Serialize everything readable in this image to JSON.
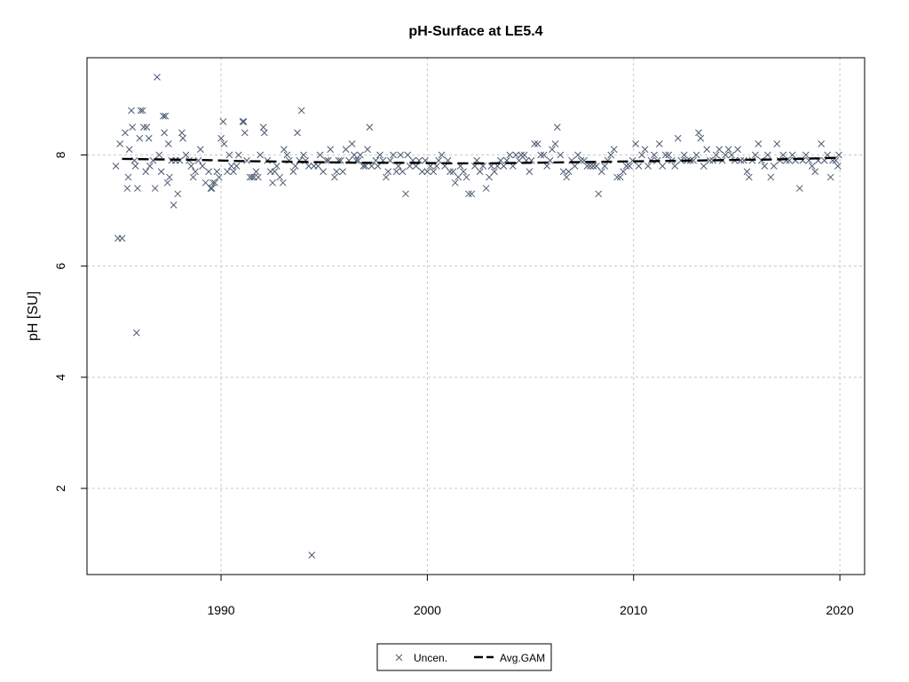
{
  "chart_data": {
    "type": "scatter",
    "title": "pH-Surface at LE5.4",
    "xlabel": "",
    "ylabel": "pH [SU]",
    "xlim": [
      1983.5,
      2021.2
    ],
    "ylim": [
      0.45,
      9.75
    ],
    "x_ticks": [
      1990,
      2000,
      2010,
      2020
    ],
    "y_ticks": [
      2,
      4,
      6,
      8
    ],
    "grid": true,
    "legend_position": "bottom-center",
    "colors": {
      "points": "#4a5a70",
      "line": "#000000",
      "grid": "#c8c8c8"
    },
    "series": [
      {
        "name": "Uncen.",
        "marker": "x",
        "points": [
          [
            1984.9,
            7.8
          ],
          [
            1985.0,
            6.5
          ],
          [
            1985.1,
            8.2
          ],
          [
            1985.2,
            6.5
          ],
          [
            1985.35,
            8.4
          ],
          [
            1985.45,
            7.4
          ],
          [
            1985.5,
            7.6
          ],
          [
            1985.55,
            8.1
          ],
          [
            1985.65,
            8.8
          ],
          [
            1985.7,
            8.5
          ],
          [
            1985.8,
            7.9
          ],
          [
            1985.85,
            7.8
          ],
          [
            1985.9,
            4.8
          ],
          [
            1985.95,
            7.4
          ],
          [
            1986.05,
            8.3
          ],
          [
            1986.1,
            8.8
          ],
          [
            1986.2,
            8.8
          ],
          [
            1986.25,
            8.5
          ],
          [
            1986.35,
            7.7
          ],
          [
            1986.4,
            8.5
          ],
          [
            1986.5,
            8.3
          ],
          [
            1986.55,
            7.8
          ],
          [
            1986.7,
            7.9
          ],
          [
            1986.8,
            7.4
          ],
          [
            1986.9,
            9.4
          ],
          [
            1987.0,
            8.0
          ],
          [
            1987.1,
            7.7
          ],
          [
            1987.2,
            8.7
          ],
          [
            1987.25,
            8.4
          ],
          [
            1987.3,
            8.7
          ],
          [
            1987.4,
            7.5
          ],
          [
            1987.45,
            8.2
          ],
          [
            1987.5,
            7.6
          ],
          [
            1987.6,
            7.9
          ],
          [
            1987.7,
            7.1
          ],
          [
            1987.8,
            7.9
          ],
          [
            1987.9,
            7.3
          ],
          [
            1988.0,
            7.9
          ],
          [
            1988.1,
            8.4
          ],
          [
            1988.15,
            8.3
          ],
          [
            1988.3,
            8.0
          ],
          [
            1988.45,
            7.9
          ],
          [
            1988.55,
            7.8
          ],
          [
            1988.65,
            7.6
          ],
          [
            1988.75,
            7.7
          ],
          [
            1988.9,
            7.9
          ],
          [
            1989.0,
            8.1
          ],
          [
            1989.1,
            7.8
          ],
          [
            1989.25,
            7.5
          ],
          [
            1989.4,
            7.7
          ],
          [
            1989.5,
            7.4
          ],
          [
            1989.55,
            7.4
          ],
          [
            1989.6,
            7.5
          ],
          [
            1989.7,
            7.5
          ],
          [
            1989.8,
            7.7
          ],
          [
            1989.9,
            7.6
          ],
          [
            1990.0,
            8.3
          ],
          [
            1990.1,
            8.6
          ],
          [
            1990.15,
            8.2
          ],
          [
            1990.3,
            7.7
          ],
          [
            1990.4,
            8.0
          ],
          [
            1990.5,
            7.8
          ],
          [
            1990.6,
            7.7
          ],
          [
            1990.75,
            7.8
          ],
          [
            1990.85,
            8.0
          ],
          [
            1991.05,
            8.6
          ],
          [
            1991.1,
            8.6
          ],
          [
            1991.15,
            8.4
          ],
          [
            1991.25,
            7.9
          ],
          [
            1991.4,
            7.6
          ],
          [
            1991.5,
            7.6
          ],
          [
            1991.6,
            7.6
          ],
          [
            1991.7,
            7.7
          ],
          [
            1991.8,
            7.6
          ],
          [
            1991.9,
            8.0
          ],
          [
            1992.05,
            8.5
          ],
          [
            1992.1,
            8.4
          ],
          [
            1992.25,
            7.9
          ],
          [
            1992.4,
            7.7
          ],
          [
            1992.5,
            7.5
          ],
          [
            1992.6,
            7.7
          ],
          [
            1992.7,
            7.8
          ],
          [
            1992.85,
            7.6
          ],
          [
            1993.0,
            7.5
          ],
          [
            1993.05,
            8.1
          ],
          [
            1993.2,
            8.0
          ],
          [
            1993.3,
            7.9
          ],
          [
            1993.5,
            7.7
          ],
          [
            1993.6,
            7.8
          ],
          [
            1993.7,
            8.4
          ],
          [
            1993.8,
            7.9
          ],
          [
            1993.9,
            8.8
          ],
          [
            1994.0,
            8.0
          ],
          [
            1994.1,
            7.9
          ],
          [
            1994.25,
            7.8
          ],
          [
            1994.4,
            0.8
          ],
          [
            1994.5,
            7.8
          ],
          [
            1994.7,
            7.8
          ],
          [
            1994.8,
            8.0
          ],
          [
            1994.95,
            7.7
          ],
          [
            1995.1,
            7.9
          ],
          [
            1995.2,
            7.9
          ],
          [
            1995.3,
            8.1
          ],
          [
            1995.5,
            7.6
          ],
          [
            1995.6,
            7.7
          ],
          [
            1995.7,
            7.9
          ],
          [
            1995.8,
            7.9
          ],
          [
            1995.9,
            7.7
          ],
          [
            1996.05,
            8.1
          ],
          [
            1996.2,
            7.9
          ],
          [
            1996.35,
            8.2
          ],
          [
            1996.45,
            8.0
          ],
          [
            1996.55,
            7.9
          ],
          [
            1996.65,
            7.9
          ],
          [
            1996.75,
            8.0
          ],
          [
            1996.9,
            7.8
          ],
          [
            1997.0,
            7.8
          ],
          [
            1997.1,
            8.1
          ],
          [
            1997.2,
            8.5
          ],
          [
            1997.3,
            7.8
          ],
          [
            1997.5,
            7.9
          ],
          [
            1997.6,
            7.8
          ],
          [
            1997.7,
            8.0
          ],
          [
            1997.85,
            7.9
          ],
          [
            1998.0,
            7.6
          ],
          [
            1998.1,
            7.7
          ],
          [
            1998.2,
            7.9
          ],
          [
            1998.35,
            8.0
          ],
          [
            1998.5,
            7.7
          ],
          [
            1998.6,
            7.8
          ],
          [
            1998.7,
            8.0
          ],
          [
            1998.8,
            7.7
          ],
          [
            1998.95,
            7.3
          ],
          [
            1999.05,
            8.0
          ],
          [
            1999.15,
            7.8
          ],
          [
            1999.3,
            7.9
          ],
          [
            1999.45,
            7.8
          ],
          [
            1999.6,
            7.9
          ],
          [
            1999.75,
            7.7
          ],
          [
            1999.9,
            7.9
          ],
          [
            2000.0,
            7.7
          ],
          [
            2000.15,
            7.8
          ],
          [
            2000.3,
            7.7
          ],
          [
            2000.45,
            7.8
          ],
          [
            2000.55,
            7.9
          ],
          [
            2000.7,
            8.0
          ],
          [
            2000.85,
            7.8
          ],
          [
            2001.0,
            7.9
          ],
          [
            2001.1,
            7.7
          ],
          [
            2001.25,
            7.7
          ],
          [
            2001.35,
            7.5
          ],
          [
            2001.5,
            7.6
          ],
          [
            2001.6,
            7.8
          ],
          [
            2001.75,
            7.7
          ],
          [
            2001.9,
            7.6
          ],
          [
            2002.0,
            7.3
          ],
          [
            2002.15,
            7.3
          ],
          [
            2002.3,
            7.8
          ],
          [
            2002.4,
            7.9
          ],
          [
            2002.55,
            7.7
          ],
          [
            2002.7,
            7.8
          ],
          [
            2002.85,
            7.4
          ],
          [
            2003.0,
            7.6
          ],
          [
            2003.1,
            7.8
          ],
          [
            2003.25,
            7.7
          ],
          [
            2003.4,
            7.8
          ],
          [
            2003.55,
            7.9
          ],
          [
            2003.7,
            7.8
          ],
          [
            2003.85,
            7.9
          ],
          [
            2004.0,
            8.0
          ],
          [
            2004.15,
            7.8
          ],
          [
            2004.3,
            8.0
          ],
          [
            2004.45,
            7.9
          ],
          [
            2004.55,
            8.0
          ],
          [
            2004.7,
            8.0
          ],
          [
            2004.8,
            7.9
          ],
          [
            2004.95,
            7.7
          ],
          [
            2005.05,
            7.9
          ],
          [
            2005.2,
            8.2
          ],
          [
            2005.35,
            8.2
          ],
          [
            2005.5,
            8.0
          ],
          [
            2005.65,
            8.0
          ],
          [
            2005.8,
            7.8
          ],
          [
            2005.95,
            7.9
          ],
          [
            2006.05,
            8.1
          ],
          [
            2006.2,
            8.2
          ],
          [
            2006.3,
            8.5
          ],
          [
            2006.45,
            8.0
          ],
          [
            2006.6,
            7.7
          ],
          [
            2006.75,
            7.6
          ],
          [
            2006.85,
            7.7
          ],
          [
            2007.0,
            7.9
          ],
          [
            2007.15,
            7.8
          ],
          [
            2007.3,
            8.0
          ],
          [
            2007.45,
            7.9
          ],
          [
            2007.6,
            7.9
          ],
          [
            2007.75,
            7.8
          ],
          [
            2007.9,
            7.8
          ],
          [
            2008.05,
            7.8
          ],
          [
            2008.2,
            7.8
          ],
          [
            2008.3,
            7.3
          ],
          [
            2008.45,
            7.7
          ],
          [
            2008.6,
            7.8
          ],
          [
            2008.75,
            7.9
          ],
          [
            2008.9,
            8.0
          ],
          [
            2009.05,
            8.1
          ],
          [
            2009.2,
            7.6
          ],
          [
            2009.35,
            7.6
          ],
          [
            2009.5,
            7.7
          ],
          [
            2009.65,
            7.8
          ],
          [
            2009.8,
            7.8
          ],
          [
            2009.95,
            7.9
          ],
          [
            2010.1,
            8.2
          ],
          [
            2010.25,
            7.8
          ],
          [
            2010.4,
            8.0
          ],
          [
            2010.55,
            8.1
          ],
          [
            2010.7,
            7.8
          ],
          [
            2010.85,
            7.9
          ],
          [
            2011.0,
            8.0
          ],
          [
            2011.15,
            7.9
          ],
          [
            2011.25,
            8.2
          ],
          [
            2011.4,
            7.8
          ],
          [
            2011.55,
            8.0
          ],
          [
            2011.7,
            8.0
          ],
          [
            2011.85,
            7.9
          ],
          [
            2012.0,
            7.8
          ],
          [
            2012.15,
            8.3
          ],
          [
            2012.3,
            7.9
          ],
          [
            2012.45,
            8.0
          ],
          [
            2012.6,
            7.9
          ],
          [
            2012.75,
            7.9
          ],
          [
            2012.9,
            7.9
          ],
          [
            2013.05,
            8.0
          ],
          [
            2013.15,
            8.4
          ],
          [
            2013.25,
            8.3
          ],
          [
            2013.4,
            7.8
          ],
          [
            2013.55,
            8.1
          ],
          [
            2013.7,
            7.9
          ],
          [
            2013.85,
            7.9
          ],
          [
            2014.0,
            8.0
          ],
          [
            2014.15,
            8.1
          ],
          [
            2014.3,
            7.9
          ],
          [
            2014.45,
            8.0
          ],
          [
            2014.6,
            8.1
          ],
          [
            2014.75,
            8.0
          ],
          [
            2014.9,
            7.9
          ],
          [
            2015.05,
            8.1
          ],
          [
            2015.2,
            7.9
          ],
          [
            2015.35,
            7.9
          ],
          [
            2015.5,
            7.7
          ],
          [
            2015.6,
            7.6
          ],
          [
            2015.75,
            7.9
          ],
          [
            2015.9,
            8.0
          ],
          [
            2016.05,
            8.2
          ],
          [
            2016.2,
            7.9
          ],
          [
            2016.35,
            7.8
          ],
          [
            2016.5,
            8.0
          ],
          [
            2016.65,
            7.6
          ],
          [
            2016.8,
            7.8
          ],
          [
            2016.95,
            8.2
          ],
          [
            2017.1,
            7.9
          ],
          [
            2017.25,
            8.0
          ],
          [
            2017.4,
            7.9
          ],
          [
            2017.55,
            7.9
          ],
          [
            2017.7,
            8.0
          ],
          [
            2017.85,
            7.9
          ],
          [
            2018.05,
            7.4
          ],
          [
            2018.2,
            7.9
          ],
          [
            2018.35,
            8.0
          ],
          [
            2018.5,
            7.9
          ],
          [
            2018.65,
            7.8
          ],
          [
            2018.8,
            7.7
          ],
          [
            2018.95,
            7.9
          ],
          [
            2019.1,
            8.2
          ],
          [
            2019.25,
            7.9
          ],
          [
            2019.4,
            8.0
          ],
          [
            2019.55,
            7.6
          ],
          [
            2019.65,
            7.9
          ],
          [
            2019.8,
            7.9
          ],
          [
            2019.9,
            7.8
          ],
          [
            2019.95,
            8.0
          ]
        ]
      },
      {
        "name": "Avg.GAM",
        "style": "dashed",
        "points": [
          [
            1985.2,
            7.93
          ],
          [
            1987.0,
            7.92
          ],
          [
            1989.0,
            7.91
          ],
          [
            1991.0,
            7.89
          ],
          [
            1993.0,
            7.88
          ],
          [
            1995.0,
            7.87
          ],
          [
            1997.0,
            7.86
          ],
          [
            1999.0,
            7.86
          ],
          [
            2001.0,
            7.85
          ],
          [
            2003.0,
            7.85
          ],
          [
            2005.0,
            7.86
          ],
          [
            2007.0,
            7.87
          ],
          [
            2009.0,
            7.88
          ],
          [
            2011.0,
            7.89
          ],
          [
            2013.0,
            7.9
          ],
          [
            2015.0,
            7.91
          ],
          [
            2017.0,
            7.92
          ],
          [
            2019.0,
            7.94
          ],
          [
            2019.9,
            7.95
          ]
        ]
      }
    ]
  },
  "legend": {
    "uncen_label": "Uncen.",
    "gam_label": "Avg.GAM"
  }
}
